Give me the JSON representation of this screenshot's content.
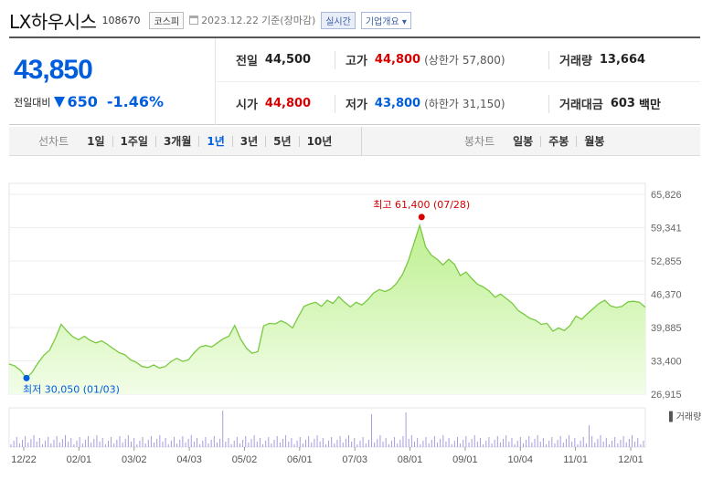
{
  "header": {
    "name": "LX하우시스",
    "code": "108670",
    "market": "코스피",
    "date": "2023.12.22",
    "basis": "기준(장마감)",
    "live": "실시간",
    "company_info": "기업개요",
    "dropdown_glyph": "▾"
  },
  "summary": {
    "price": "43,850",
    "vs_label": "전일대비",
    "diff": "650",
    "pct": "-1.46%",
    "prev_label": "전일",
    "prev": "44,500",
    "high_label": "고가",
    "high": "44,800",
    "upper_label": "(상한가",
    "upper": "57,800)",
    "volume_label": "거래량",
    "volume": "13,664",
    "open_label": "시가",
    "open": "44,800",
    "low_label": "저가",
    "low": "43,800",
    "lower_label": "(하한가",
    "lower": "31,150)",
    "amount_label": "거래대금",
    "amount": "603",
    "amount_unit": "백만"
  },
  "tabs": {
    "line_label": "선차트",
    "line_items": [
      "1일",
      "1주일",
      "3개월",
      "1년",
      "3년",
      "5년",
      "10년"
    ],
    "line_active": "1년",
    "candle_label": "봉차트",
    "candle_items": [
      "일봉",
      "주봉",
      "월봉"
    ]
  },
  "colors": {
    "up": "#d60000",
    "down": "#005dde",
    "area_line": "#7ac943",
    "area_fill": "#d9f5c0"
  },
  "chart_data": {
    "type": "area",
    "y_ticks": [
      "65,826",
      "59,341",
      "52,855",
      "46,370",
      "39,885",
      "33,400",
      "26,915"
    ],
    "ylim": [
      26915,
      65826
    ],
    "x_ticks": [
      "12/22",
      "02/01",
      "03/02",
      "04/03",
      "05/02",
      "06/01",
      "07/03",
      "08/01",
      "09/01",
      "10/04",
      "11/01",
      "12/01"
    ],
    "max_label": "최고 61,400 (07/28)",
    "min_label": "최저 30,050 (01/03)",
    "volume_label": "거래량",
    "series": [
      {
        "values": [
          32800,
          32400,
          31500,
          30050,
          31200,
          33000,
          34500,
          35500,
          37800,
          40500,
          39200,
          38100,
          37500,
          38200,
          37400,
          36900,
          37300,
          36600,
          35800,
          35000,
          34600,
          33600,
          33100,
          32300,
          32100,
          32600,
          32000,
          32300,
          33300,
          33900,
          33300,
          33600,
          35000,
          36100,
          36400,
          36100,
          36900,
          37700,
          38200,
          40300,
          37700,
          35900,
          34900,
          35200,
          40200,
          40700,
          40600,
          41200,
          40700,
          39800,
          42000,
          44000,
          44500,
          44800,
          44000,
          45200,
          44600,
          45900,
          44800,
          43900,
          44800,
          44300,
          45300,
          46600,
          47300,
          46900,
          47400,
          48500,
          50200,
          52800,
          56300,
          59800,
          55600,
          54000,
          53200,
          52100,
          53200,
          52200,
          50000,
          50700,
          49400,
          48300,
          47800,
          47000,
          45800,
          46400,
          45500,
          44600,
          43200,
          42500,
          41700,
          41300,
          40500,
          40700,
          39200,
          39800,
          39300,
          40300,
          42100,
          41500,
          42600,
          43600,
          44600,
          45200,
          44100,
          43800,
          44000,
          44900,
          45000,
          44800,
          43850
        ]
      },
      {
        "name": "거래량"
      }
    ]
  }
}
